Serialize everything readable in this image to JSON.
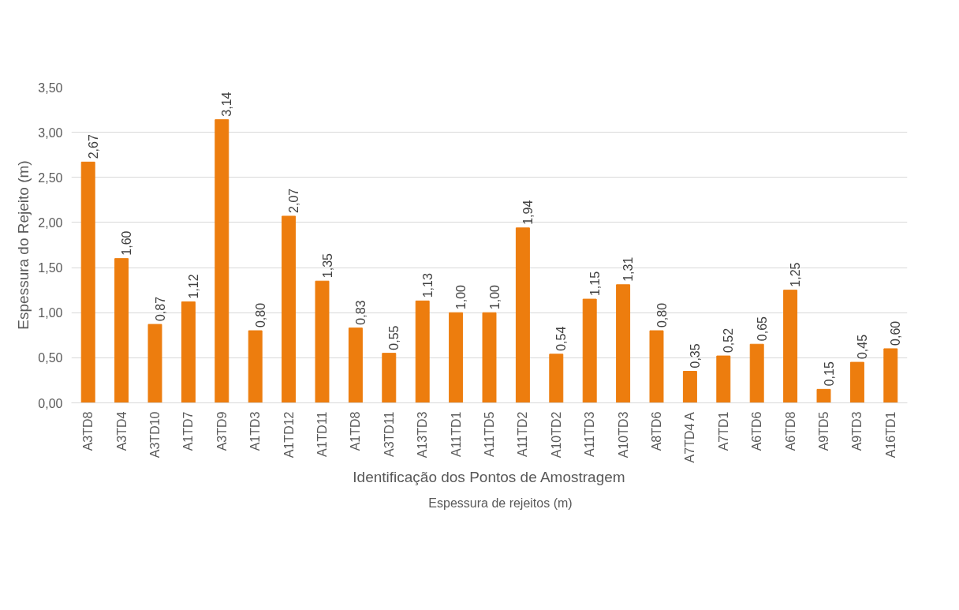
{
  "chart_data": {
    "type": "bar",
    "xlabel": "Identificação dos Pontos de Amostragem",
    "ylabel": "Espessura do Rejeito (m)",
    "categories": [
      "A3TD8",
      "A3TD4",
      "A3TD10",
      "A1TD7",
      "A3TD9",
      "A1TD3",
      "A1TD12",
      "A1TD11",
      "A1TD8",
      "A3TD11",
      "A13TD3",
      "A11TD1",
      "A11TD5",
      "A11TD2",
      "A10TD2",
      "A11TD3",
      "A10TD3",
      "A8TD6",
      "A7TD4 A",
      "A7TD1",
      "A6TD6",
      "A6TD8",
      "A9TD5",
      "A9TD3",
      "A16TD1"
    ],
    "series": [
      {
        "name": "Espessura de rejeitos (m)",
        "color": "#ed7d0e",
        "values": [
          2.67,
          1.6,
          0.87,
          1.12,
          3.14,
          0.8,
          2.07,
          1.35,
          0.83,
          0.55,
          1.13,
          1.0,
          1.0,
          1.94,
          0.54,
          1.15,
          1.31,
          0.8,
          0.35,
          0.52,
          0.65,
          1.25,
          0.15,
          0.45,
          0.6
        ],
        "value_labels": [
          "2,67",
          "1,60",
          "0,87",
          "1,12",
          "3,14",
          "0,80",
          "2,07",
          "1,35",
          "0,83",
          "0,55",
          "1,13",
          "1,00",
          "1,00",
          "1,94",
          "0,54",
          "1,15",
          "1,31",
          "0,80",
          "0,35",
          "0,52",
          "0,65",
          "1,25",
          "0,15",
          "0,45",
          "0,60"
        ]
      }
    ],
    "ylim": [
      0,
      3.5
    ],
    "yticks": [
      {
        "value": 0,
        "label": "0,00"
      },
      {
        "value": 0.5,
        "label": "0,50"
      },
      {
        "value": 1,
        "label": "1,00"
      },
      {
        "value": 1.5,
        "label": "1,50"
      },
      {
        "value": 2,
        "label": "2,00"
      },
      {
        "value": 2.5,
        "label": "2,50"
      },
      {
        "value": 3,
        "label": "3,00"
      },
      {
        "value": 3.5,
        "label": "3,50"
      }
    ],
    "grid": "y",
    "legend": "bottom"
  }
}
